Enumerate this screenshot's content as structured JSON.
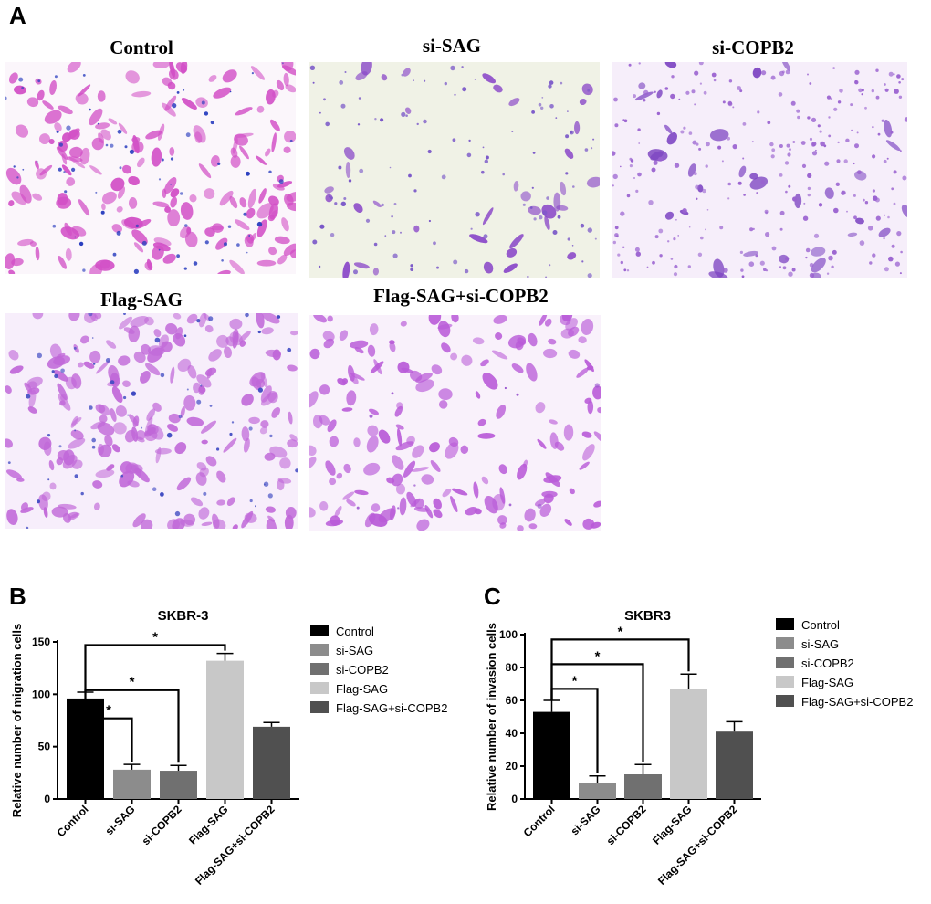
{
  "panel_a": {
    "letter": "A",
    "images": [
      {
        "title": "Control",
        "bg": "#fbf6fb",
        "cell": "#d24fc6",
        "dot": "#2b3fbf",
        "cells": 180,
        "dots": 70
      },
      {
        "title": "si-SAG",
        "bg": "#f0f2e6",
        "cell": "#8a48c8",
        "dot": "#7a58c8",
        "cells": 38,
        "dots": 110
      },
      {
        "title": "si-COPB2",
        "bg": "#f6eefa",
        "cell": "#7d45c2",
        "dot": "#9a62d0",
        "cells": 34,
        "dots": 260
      },
      {
        "title": "Flag-SAG",
        "bg": "#f7eefb",
        "cell": "#c067d8",
        "dot": "#3f4ac2",
        "cells": 210,
        "dots": 60
      },
      {
        "title": "Flag-SAG+si-COPB2",
        "bg": "#f9f1fb",
        "cell": "#b95bd8",
        "dot": "#9a55cf",
        "cells": 170,
        "dots": 10
      }
    ]
  },
  "chart_data": [
    {
      "panel_letter": "B",
      "type": "bar",
      "title": "SKBR-3",
      "ylabel": "Relative  number of migration cells",
      "xlabel": "",
      "ylim": [
        0,
        150
      ],
      "yticks": [
        0,
        50,
        100,
        150
      ],
      "categories": [
        "Control",
        "si-SAG",
        "si-COPB2",
        "Flag-SAG",
        "Flag-SAG+si-COPB2"
      ],
      "values": [
        96,
        28,
        27,
        132,
        69
      ],
      "errors": [
        6,
        5,
        5,
        7,
        4
      ],
      "colors": [
        "#000000",
        "#8c8c8c",
        "#707070",
        "#c8c8c8",
        "#505050"
      ],
      "legend": [
        "Control",
        "si-SAG",
        "si-COPB2",
        "Flag-SAG",
        "Flag-SAG+si-COPB2"
      ],
      "legend_position": "right",
      "significance": [
        {
          "from": 0,
          "to": 1,
          "y": 77,
          "label": "*"
        },
        {
          "from": 0,
          "to": 2,
          "y": 104,
          "label": "*"
        },
        {
          "from": 0,
          "to": 3,
          "y": 147,
          "label": "*"
        }
      ]
    },
    {
      "panel_letter": "C",
      "type": "bar",
      "title": "SKBR3",
      "ylabel": "Relative  number of invasion cells",
      "xlabel": "",
      "ylim": [
        0,
        100
      ],
      "yticks": [
        0,
        20,
        40,
        60,
        80,
        100
      ],
      "categories": [
        "Control",
        "si-SAG",
        "si-COPB2",
        "Flag-SAG",
        "Flag-SAG+si-COPB2"
      ],
      "values": [
        53,
        10,
        15,
        67,
        41
      ],
      "errors": [
        7,
        4,
        6,
        9,
        6
      ],
      "colors": [
        "#000000",
        "#8c8c8c",
        "#707070",
        "#c8c8c8",
        "#505050"
      ],
      "legend": [
        "Control",
        "si-SAG",
        "si-COPB2",
        "Flag-SAG",
        "Flag-SAG+si-COPB2"
      ],
      "legend_position": "right",
      "significance": [
        {
          "from": 0,
          "to": 1,
          "y": 67,
          "label": "*"
        },
        {
          "from": 0,
          "to": 2,
          "y": 82,
          "label": "*"
        },
        {
          "from": 0,
          "to": 3,
          "y": 97,
          "label": "*"
        }
      ]
    }
  ]
}
